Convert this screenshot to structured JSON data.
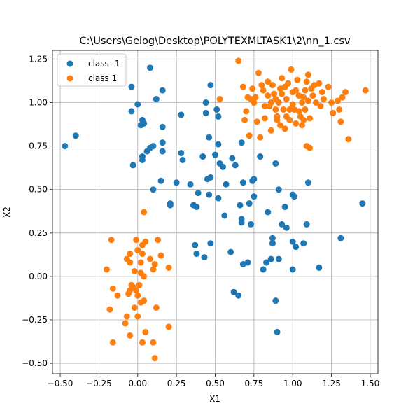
{
  "chart_data": {
    "type": "scatter",
    "title": "C:\\Users\\Gelog\\Desktop\\POLYTEXMLTASK1\\2\\nn_1.csv",
    "xlabel": "X1",
    "ylabel": "X2",
    "xlim": [
      -0.55,
      1.55
    ],
    "ylim": [
      -0.56,
      1.3
    ],
    "xticks": [
      -0.5,
      -0.25,
      0.0,
      0.25,
      0.5,
      0.75,
      1.0,
      1.25,
      1.5
    ],
    "yticks": [
      -0.5,
      -0.25,
      0.0,
      0.25,
      0.5,
      0.75,
      1.0,
      1.25
    ],
    "xtick_labels": [
      "−0.50",
      "−0.25",
      "0.00",
      "0.25",
      "0.50",
      "0.75",
      "1.00",
      "1.25",
      "1.50"
    ],
    "ytick_labels": [
      "−0.50",
      "−0.25",
      "0.00",
      "0.25",
      "0.50",
      "0.75",
      "1.00",
      "1.25"
    ],
    "grid": true,
    "legend_position": "top-left",
    "series": [
      {
        "name": "class -1",
        "color": "#1f77b4",
        "points": [
          [
            -0.47,
            0.75
          ],
          [
            -0.4,
            0.81
          ],
          [
            -0.04,
            1.09
          ],
          [
            0.08,
            1.2
          ],
          [
            -0.04,
            0.95
          ],
          [
            0.0,
            0.99
          ],
          [
            0.12,
            1.02
          ],
          [
            0.16,
            1.07
          ],
          [
            0.02,
            0.87
          ],
          [
            0.03,
            0.9
          ],
          [
            0.04,
            0.88
          ],
          [
            0.16,
            0.86
          ],
          [
            -0.03,
            0.64
          ],
          [
            0.03,
            0.67
          ],
          [
            0.03,
            0.69
          ],
          [
            0.06,
            0.72
          ],
          [
            0.08,
            0.74
          ],
          [
            0.1,
            0.75
          ],
          [
            0.16,
            0.72
          ],
          [
            0.16,
            0.77
          ],
          [
            0.1,
            0.5
          ],
          [
            0.15,
            0.55
          ],
          [
            0.21,
            0.41
          ],
          [
            0.21,
            0.42
          ],
          [
            0.25,
            0.54
          ],
          [
            0.28,
            0.93
          ],
          [
            0.28,
            0.71
          ],
          [
            0.29,
            0.67
          ],
          [
            0.34,
            0.53
          ],
          [
            0.36,
            0.41
          ],
          [
            0.38,
            0.4
          ],
          [
            0.39,
            0.48
          ],
          [
            0.42,
            0.69
          ],
          [
            0.44,
            1.0
          ],
          [
            0.44,
            0.94
          ],
          [
            0.46,
            0.8
          ],
          [
            0.47,
            1.1
          ],
          [
            0.45,
            0.56
          ],
          [
            0.47,
            0.57
          ],
          [
            0.46,
            0.47
          ],
          [
            0.5,
            0.7
          ],
          [
            0.51,
            0.96
          ],
          [
            0.52,
            0.92
          ],
          [
            0.52,
            0.76
          ],
          [
            0.53,
            0.65
          ],
          [
            0.55,
            0.63
          ],
          [
            0.56,
            0.35
          ],
          [
            0.57,
            0.53
          ],
          [
            0.6,
            0.14
          ],
          [
            0.61,
            0.68
          ],
          [
            0.63,
            0.64
          ],
          [
            0.52,
            0.45
          ],
          [
            0.37,
            0.18
          ],
          [
            0.38,
            0.13
          ],
          [
            0.43,
            0.11
          ],
          [
            0.47,
            0.19
          ],
          [
            0.66,
            0.41
          ],
          [
            0.67,
            0.77
          ],
          [
            0.67,
            0.33
          ],
          [
            0.67,
            0.31
          ],
          [
            0.68,
            0.54
          ],
          [
            0.68,
            0.07
          ],
          [
            0.71,
            0.08
          ],
          [
            0.72,
            0.42
          ],
          [
            0.73,
            0.3
          ],
          [
            0.74,
            0.55
          ],
          [
            0.75,
            0.56
          ],
          [
            0.75,
            0.46
          ],
          [
            0.62,
            -0.09
          ],
          [
            0.65,
            -0.11
          ],
          [
            0.79,
            0.69
          ],
          [
            0.81,
            0.04
          ],
          [
            0.83,
            0.08
          ],
          [
            0.84,
            0.37
          ],
          [
            0.86,
            0.1
          ],
          [
            0.87,
            0.22
          ],
          [
            0.87,
            0.19
          ],
          [
            0.89,
            0.65
          ],
          [
            0.89,
            -0.14
          ],
          [
            0.9,
            -0.32
          ],
          [
            0.91,
            0.5
          ],
          [
            0.91,
            0.1
          ],
          [
            0.93,
            0.3
          ],
          [
            0.95,
            0.4
          ],
          [
            0.96,
            0.28
          ],
          [
            1.0,
            0.47
          ],
          [
            1.0,
            0.2
          ],
          [
            1.0,
            0.04
          ],
          [
            1.01,
            0.46
          ],
          [
            1.02,
            0.17
          ],
          [
            1.07,
            0.19
          ],
          [
            1.09,
            0.3
          ],
          [
            1.1,
            0.54
          ],
          [
            1.17,
            0.05
          ],
          [
            1.31,
            0.22
          ],
          [
            1.45,
            0.42
          ]
        ]
      },
      {
        "name": "class 1",
        "color": "#ff7f0e",
        "points": [
          [
            -0.17,
            0.21
          ],
          [
            -0.2,
            0.04
          ],
          [
            -0.18,
            -0.19
          ],
          [
            -0.16,
            -0.07
          ],
          [
            -0.16,
            -0.38
          ],
          [
            -0.13,
            -0.11
          ],
          [
            -0.08,
            -0.27
          ],
          [
            -0.07,
            -0.23
          ],
          [
            -0.07,
            0.1
          ],
          [
            -0.06,
            -0.1
          ],
          [
            -0.05,
            0.08
          ],
          [
            -0.05,
            0.13
          ],
          [
            -0.05,
            -0.08
          ],
          [
            -0.04,
            -0.05
          ],
          [
            -0.03,
            -0.06
          ],
          [
            -0.02,
            0.03
          ],
          [
            -0.02,
            -0.18
          ],
          [
            -0.01,
            -0.08
          ],
          [
            -0.01,
            0.21
          ],
          [
            0.0,
            -0.11
          ],
          [
            0.0,
            -0.23
          ],
          [
            0.0,
            0.15
          ],
          [
            0.01,
            -0.05
          ],
          [
            0.02,
            0.08
          ],
          [
            0.02,
            0.02
          ],
          [
            0.02,
            -0.15
          ],
          [
            0.03,
            0.13
          ],
          [
            0.03,
            0.18
          ],
          [
            0.04,
            0.37
          ],
          [
            0.04,
            0.0
          ],
          [
            0.04,
            -0.14
          ],
          [
            0.05,
            -0.32
          ],
          [
            0.05,
            0.2
          ],
          [
            0.03,
            -0.38
          ],
          [
            0.08,
            0.1
          ],
          [
            0.1,
            0.04
          ],
          [
            0.1,
            -0.38
          ],
          [
            0.11,
            0.07
          ],
          [
            0.11,
            -0.47
          ],
          [
            0.12,
            -0.18
          ],
          [
            0.13,
            0.21
          ],
          [
            0.15,
            0.12
          ],
          [
            0.2,
            0.05
          ],
          [
            0.2,
            -0.29
          ],
          [
            -0.05,
            -0.34
          ],
          [
            0.53,
            1.02
          ],
          [
            0.65,
            1.24
          ],
          [
            0.68,
            1.09
          ],
          [
            0.69,
            0.9
          ],
          [
            0.7,
            0.95
          ],
          [
            0.71,
            1.03
          ],
          [
            0.72,
            0.81
          ],
          [
            0.73,
            1.02
          ],
          [
            0.74,
            1.08
          ],
          [
            0.75,
            1.0
          ],
          [
            0.76,
            1.03
          ],
          [
            0.77,
            0.89
          ],
          [
            0.78,
            1.17
          ],
          [
            0.79,
            0.8
          ],
          [
            0.8,
            1.1
          ],
          [
            0.81,
            1.07
          ],
          [
            0.82,
            0.91
          ],
          [
            0.82,
            0.98
          ],
          [
            0.84,
            1.04
          ],
          [
            0.84,
            1.12
          ],
          [
            0.85,
            0.98
          ],
          [
            0.86,
            1.0
          ],
          [
            0.86,
            0.84
          ],
          [
            0.87,
            1.1
          ],
          [
            0.88,
            1.05
          ],
          [
            0.89,
            1.02
          ],
          [
            0.89,
            0.96
          ],
          [
            0.9,
            0.92
          ],
          [
            0.9,
            0.9
          ],
          [
            0.91,
            1.0
          ],
          [
            0.92,
            1.08
          ],
          [
            0.92,
            0.87
          ],
          [
            0.93,
            1.14
          ],
          [
            0.93,
            1.05
          ],
          [
            0.94,
            0.96
          ],
          [
            0.95,
            1.09
          ],
          [
            0.95,
            0.85
          ],
          [
            0.96,
            0.92
          ],
          [
            0.96,
            1.02
          ],
          [
            0.97,
            1.11
          ],
          [
            0.98,
            0.96
          ],
          [
            0.98,
            0.9
          ],
          [
            0.99,
            1.19
          ],
          [
            1.0,
            1.06
          ],
          [
            1.0,
            0.99
          ],
          [
            1.01,
            0.96
          ],
          [
            1.02,
            0.88
          ],
          [
            1.02,
            1.07
          ],
          [
            1.03,
            1.13
          ],
          [
            1.04,
            0.95
          ],
          [
            1.04,
            1.04
          ],
          [
            1.05,
            0.92
          ],
          [
            1.06,
            1.0
          ],
          [
            1.06,
            0.87
          ],
          [
            1.07,
            1.03
          ],
          [
            1.07,
            0.9
          ],
          [
            1.08,
            1.07
          ],
          [
            1.08,
            0.96
          ],
          [
            1.09,
            1.12
          ],
          [
            1.09,
            0.75
          ],
          [
            1.1,
            1.16
          ],
          [
            1.1,
            1.01
          ],
          [
            1.11,
            0.74
          ],
          [
            1.11,
            0.91
          ],
          [
            1.12,
            1.08
          ],
          [
            1.13,
            1.04
          ],
          [
            1.14,
            1.1
          ],
          [
            1.15,
            1.0
          ],
          [
            1.17,
            1.11
          ],
          [
            1.18,
            0.98
          ],
          [
            1.19,
            1.06
          ],
          [
            1.2,
            1.02
          ],
          [
            1.23,
            1.09
          ],
          [
            1.25,
            1.0
          ],
          [
            1.26,
            0.94
          ],
          [
            1.29,
            1.01
          ],
          [
            1.3,
            0.96
          ],
          [
            1.31,
            0.89
          ],
          [
            1.32,
            1.03
          ],
          [
            1.34,
            1.06
          ],
          [
            1.36,
            0.79
          ],
          [
            1.47,
            1.07
          ]
        ]
      }
    ]
  }
}
